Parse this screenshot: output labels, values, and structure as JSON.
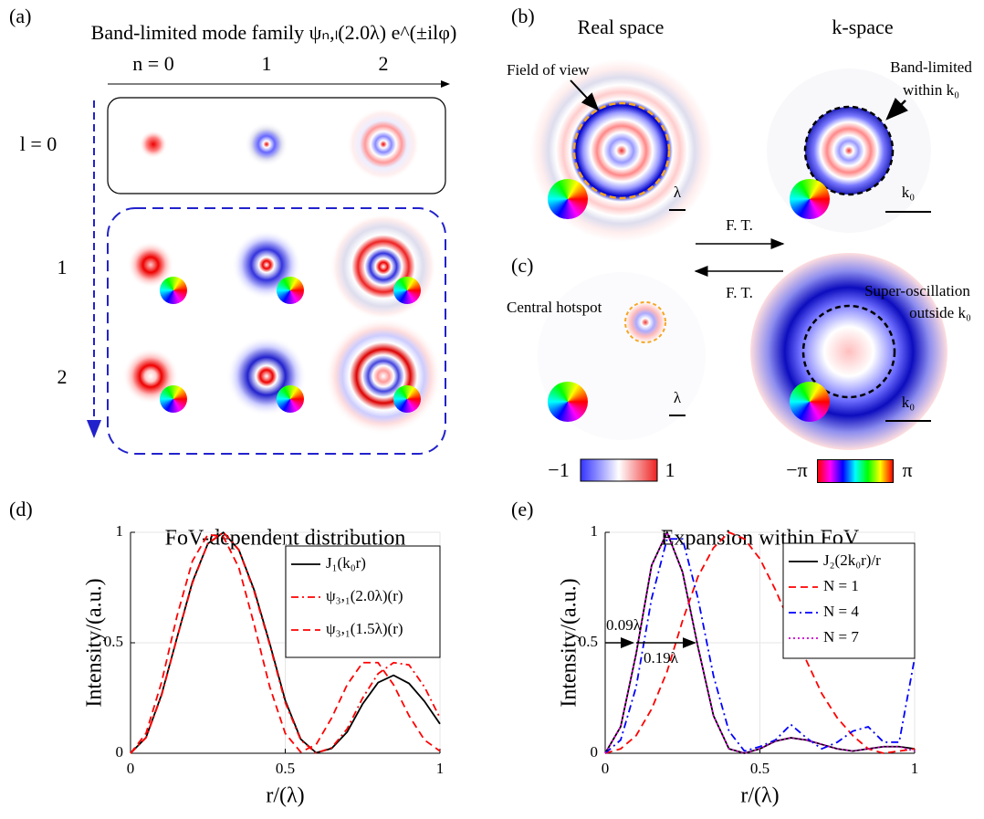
{
  "panels": {
    "a": {
      "label": "(a)",
      "title": "Band-limited mode family ψₙ,ₗ(2.0λ) e^(±ilφ)",
      "n_labels": [
        "n = 0",
        "1",
        "2"
      ],
      "l_labels": [
        "l = 0",
        "1",
        "2"
      ]
    },
    "b": {
      "label": "(b)",
      "real_title": "Real space",
      "k_title": "k-space",
      "fov": "Field of view",
      "band1": "Band-limited",
      "band2": "within k₀",
      "lambda": "λ",
      "k0": "k₀"
    },
    "ft": [
      "F. T.",
      "F. T."
    ],
    "c": {
      "label": "(c)",
      "hotspot": "Central hotspot",
      "super1": "Super-oscillation",
      "super2": "outside k₀",
      "lambda": "λ",
      "k0": "k₀"
    },
    "colorbars": {
      "amp": [
        "−1",
        "1"
      ],
      "phase": [
        "−π",
        "π"
      ]
    },
    "d_label": "(d)",
    "e_label": "(e)"
  },
  "chart_data": [
    {
      "type": "line",
      "title": "FoV-dependent distribution",
      "xlabel": "r/(λ)",
      "ylabel": "Intensity/(a.u.)",
      "x": [
        0,
        0.05,
        0.1,
        0.15,
        0.2,
        0.25,
        0.3,
        0.35,
        0.4,
        0.45,
        0.5,
        0.55,
        0.6,
        0.65,
        0.7,
        0.75,
        0.8,
        0.85,
        0.9,
        0.95,
        1
      ],
      "series": [
        {
          "name": "J₁(k₀r)",
          "color": "#000000",
          "linestyle": "solid",
          "values": [
            0,
            0.071,
            0.264,
            0.522,
            0.775,
            0.949,
            0.999,
            0.921,
            0.737,
            0.496,
            0.239,
            0.064,
            0.002,
            0.022,
            0.096,
            0.223,
            0.32,
            0.353,
            0.316,
            0.235,
            0.133
          ]
        },
        {
          "name": "ψ₃,₁(2.0λ)(r)",
          "color": "#ff0000",
          "linestyle": "dashdot",
          "values": [
            0,
            0.07,
            0.26,
            0.52,
            0.77,
            0.95,
            1.0,
            0.92,
            0.73,
            0.49,
            0.23,
            0.06,
            0.001,
            0.025,
            0.11,
            0.25,
            0.36,
            0.41,
            0.4,
            0.3,
            0.16
          ]
        },
        {
          "name": "ψ₃,₁(1.5λ)(r)",
          "color": "#ff0000",
          "linestyle": "dashed",
          "values": [
            0,
            0.09,
            0.32,
            0.62,
            0.87,
            0.99,
            0.98,
            0.84,
            0.58,
            0.3,
            0.09,
            0.005,
            0.04,
            0.16,
            0.31,
            0.41,
            0.41,
            0.31,
            0.17,
            0.06,
            0.01
          ]
        }
      ],
      "xlim": [
        0,
        1
      ],
      "ylim": [
        0,
        1
      ],
      "xticks": [
        0,
        0.5,
        1
      ],
      "yticks": [
        0,
        0.5,
        1
      ],
      "grid": true,
      "legend": "upper right"
    },
    {
      "type": "line",
      "title": "Expansion within FoV",
      "xlabel": "r/(λ)",
      "ylabel": "Intensity/(a.u.)",
      "x": [
        0,
        0.05,
        0.1,
        0.15,
        0.2,
        0.25,
        0.3,
        0.35,
        0.4,
        0.45,
        0.5,
        0.55,
        0.6,
        0.65,
        0.7,
        0.75,
        0.8,
        0.85,
        0.9,
        0.95,
        1
      ],
      "series": [
        {
          "name": "J₂(2k₀r)/r",
          "color": "#000000",
          "linestyle": "solid",
          "values": [
            0,
            0.12,
            0.45,
            0.85,
            1.0,
            0.82,
            0.48,
            0.17,
            0.02,
            0.0,
            0.02,
            0.055,
            0.07,
            0.06,
            0.04,
            0.02,
            0.01,
            0.02,
            0.03,
            0.03,
            0.02
          ]
        },
        {
          "name": "N = 1",
          "color": "#ff0000",
          "linestyle": "dashed",
          "values": [
            0,
            0.02,
            0.08,
            0.2,
            0.37,
            0.6,
            0.8,
            0.93,
            1.0,
            0.97,
            0.88,
            0.74,
            0.58,
            0.42,
            0.27,
            0.16,
            0.08,
            0.02,
            0.0,
            0.01,
            0.02
          ]
        },
        {
          "name": "N = 4",
          "color": "#0000ff",
          "linestyle": "dashdot",
          "values": [
            0,
            0.06,
            0.3,
            0.7,
            0.97,
            0.97,
            0.7,
            0.35,
            0.1,
            0.01,
            0.03,
            0.06,
            0.13,
            0.07,
            0.02,
            0.05,
            0.1,
            0.12,
            0.05,
            0.05,
            0.43
          ]
        },
        {
          "name": "N = 7",
          "color": "#cc00cc",
          "linestyle": "dotted",
          "values": [
            0,
            0.12,
            0.45,
            0.85,
            1.0,
            0.82,
            0.48,
            0.17,
            0.02,
            0.0,
            0.02,
            0.055,
            0.07,
            0.06,
            0.04,
            0.02,
            0.01,
            0.02,
            0.03,
            0.03,
            0.01
          ]
        }
      ],
      "annotations": [
        "0.09λ",
        "0.19λ"
      ],
      "xlim": [
        0,
        1
      ],
      "ylim": [
        0,
        1
      ],
      "xticks": [
        0,
        0.5,
        1
      ],
      "yticks": [
        0,
        0.5,
        1
      ],
      "grid": true,
      "legend": "upper right"
    }
  ]
}
